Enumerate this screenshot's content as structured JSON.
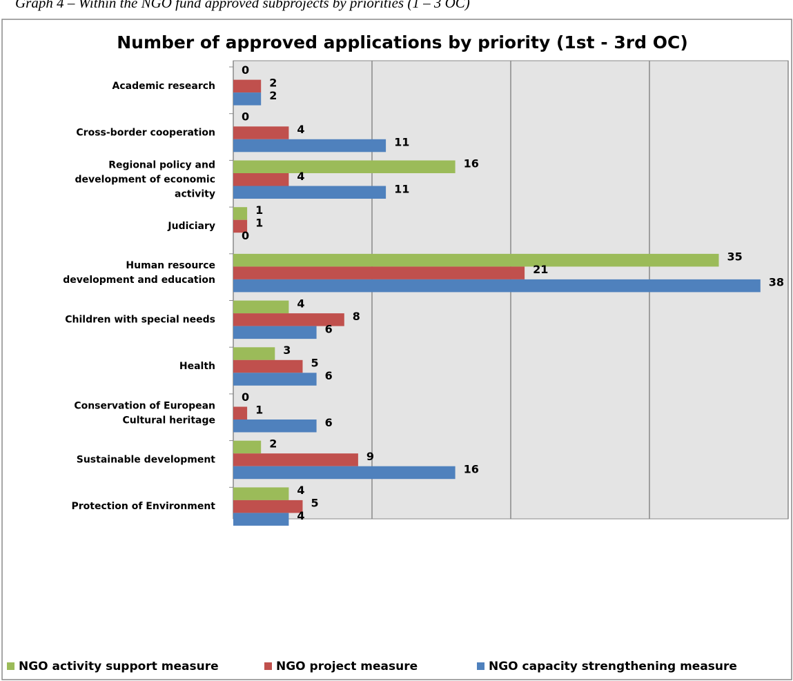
{
  "caption": "Graph 4 – Within the NGO fund approved subprojects by priorities (1 – 3 OC)",
  "chart_data": {
    "type": "hbar",
    "title": "Number of approved applications by priority (1st - 3rd OC)",
    "categories": [
      "Academic research",
      "Cross-border cooperation",
      "Regional policy and\ndevelopment of economic\nactivity",
      "Judiciary",
      "Human resource\ndevelopment and education",
      "Children with special needs",
      "Health",
      "Conservation of European\nCultural heritage",
      "Sustainable development",
      "Protection of Environment"
    ],
    "series": [
      {
        "name": "NGO activity support measure",
        "color": "#9bbb59",
        "values": [
          0,
          0,
          16,
          1,
          35,
          4,
          3,
          0,
          2,
          4
        ]
      },
      {
        "name": "NGO project measure",
        "color": "#c0504d",
        "values": [
          2,
          4,
          4,
          1,
          21,
          8,
          5,
          1,
          9,
          5
        ]
      },
      {
        "name": "NGO capacity strengthening measure",
        "color": "#4f81bd",
        "values": [
          2,
          11,
          11,
          0,
          38,
          6,
          6,
          6,
          16,
          4
        ]
      }
    ],
    "xlim": [
      0,
      40
    ],
    "xticks": [
      0,
      10,
      20,
      30,
      40
    ],
    "grid": true,
    "legend": "bottom"
  }
}
